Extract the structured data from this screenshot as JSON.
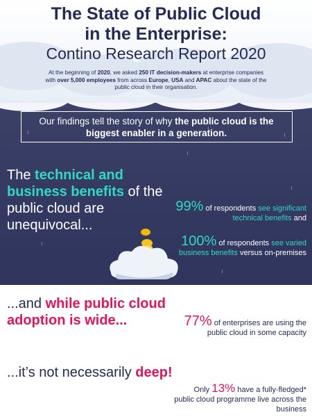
{
  "header": {
    "title_line1": "The State of Public Cloud",
    "title_line2": "in the Enterprise:",
    "subtitle": "Contino Research Report 2020",
    "intro": {
      "p1": "At the beginning of ",
      "year": "2020",
      "p2": ", we asked ",
      "respondents": "250 IT decision-makers",
      "p3": " at enterprise companies with ",
      "size": "over 5,000 employees",
      "p4": " from across ",
      "region1": "Europe",
      "p5": ", ",
      "region2": "USA",
      "p6": " and ",
      "region3": "APAC",
      "p7": " about the state of the public cloud in their organisation."
    }
  },
  "findings": {
    "pre": "Our findings tell the story of why ",
    "bold": "the public cloud is the biggest enabler in a generation."
  },
  "benefits": {
    "pre": "The ",
    "highlight": "technical and business benefits",
    "post": " of the public cloud are unequivocal..."
  },
  "stat_technical": {
    "value": "99%",
    "text1": " of respondents ",
    "highlight": "see significant technical benefits",
    "text2": " and"
  },
  "stat_business": {
    "value": "100%",
    "text1": " of respondents ",
    "highlight": "see varied business benefits",
    "text2": " versus on-premises"
  },
  "adoption": {
    "pre": "...and ",
    "highlight": "while public cloud adoption is wide..."
  },
  "stat_adoption": {
    "value": "77%",
    "text": " of enterprises are using the public cloud in some capacity"
  },
  "depth": {
    "pre": "...it’s not necessarily ",
    "highlight": "deep!"
  },
  "stat_depth": {
    "pre": "Only ",
    "value": "13%",
    "text": " have a fully-fledged* public cloud programme live across the business"
  },
  "colors": {
    "navy": "#232a57",
    "night": "#353a63",
    "teal": "#30d9c4",
    "pink": "#e2145a",
    "coin": "#f5b800"
  },
  "icons": [
    "cloud-icon",
    "coin-icon",
    "rain-icon"
  ]
}
